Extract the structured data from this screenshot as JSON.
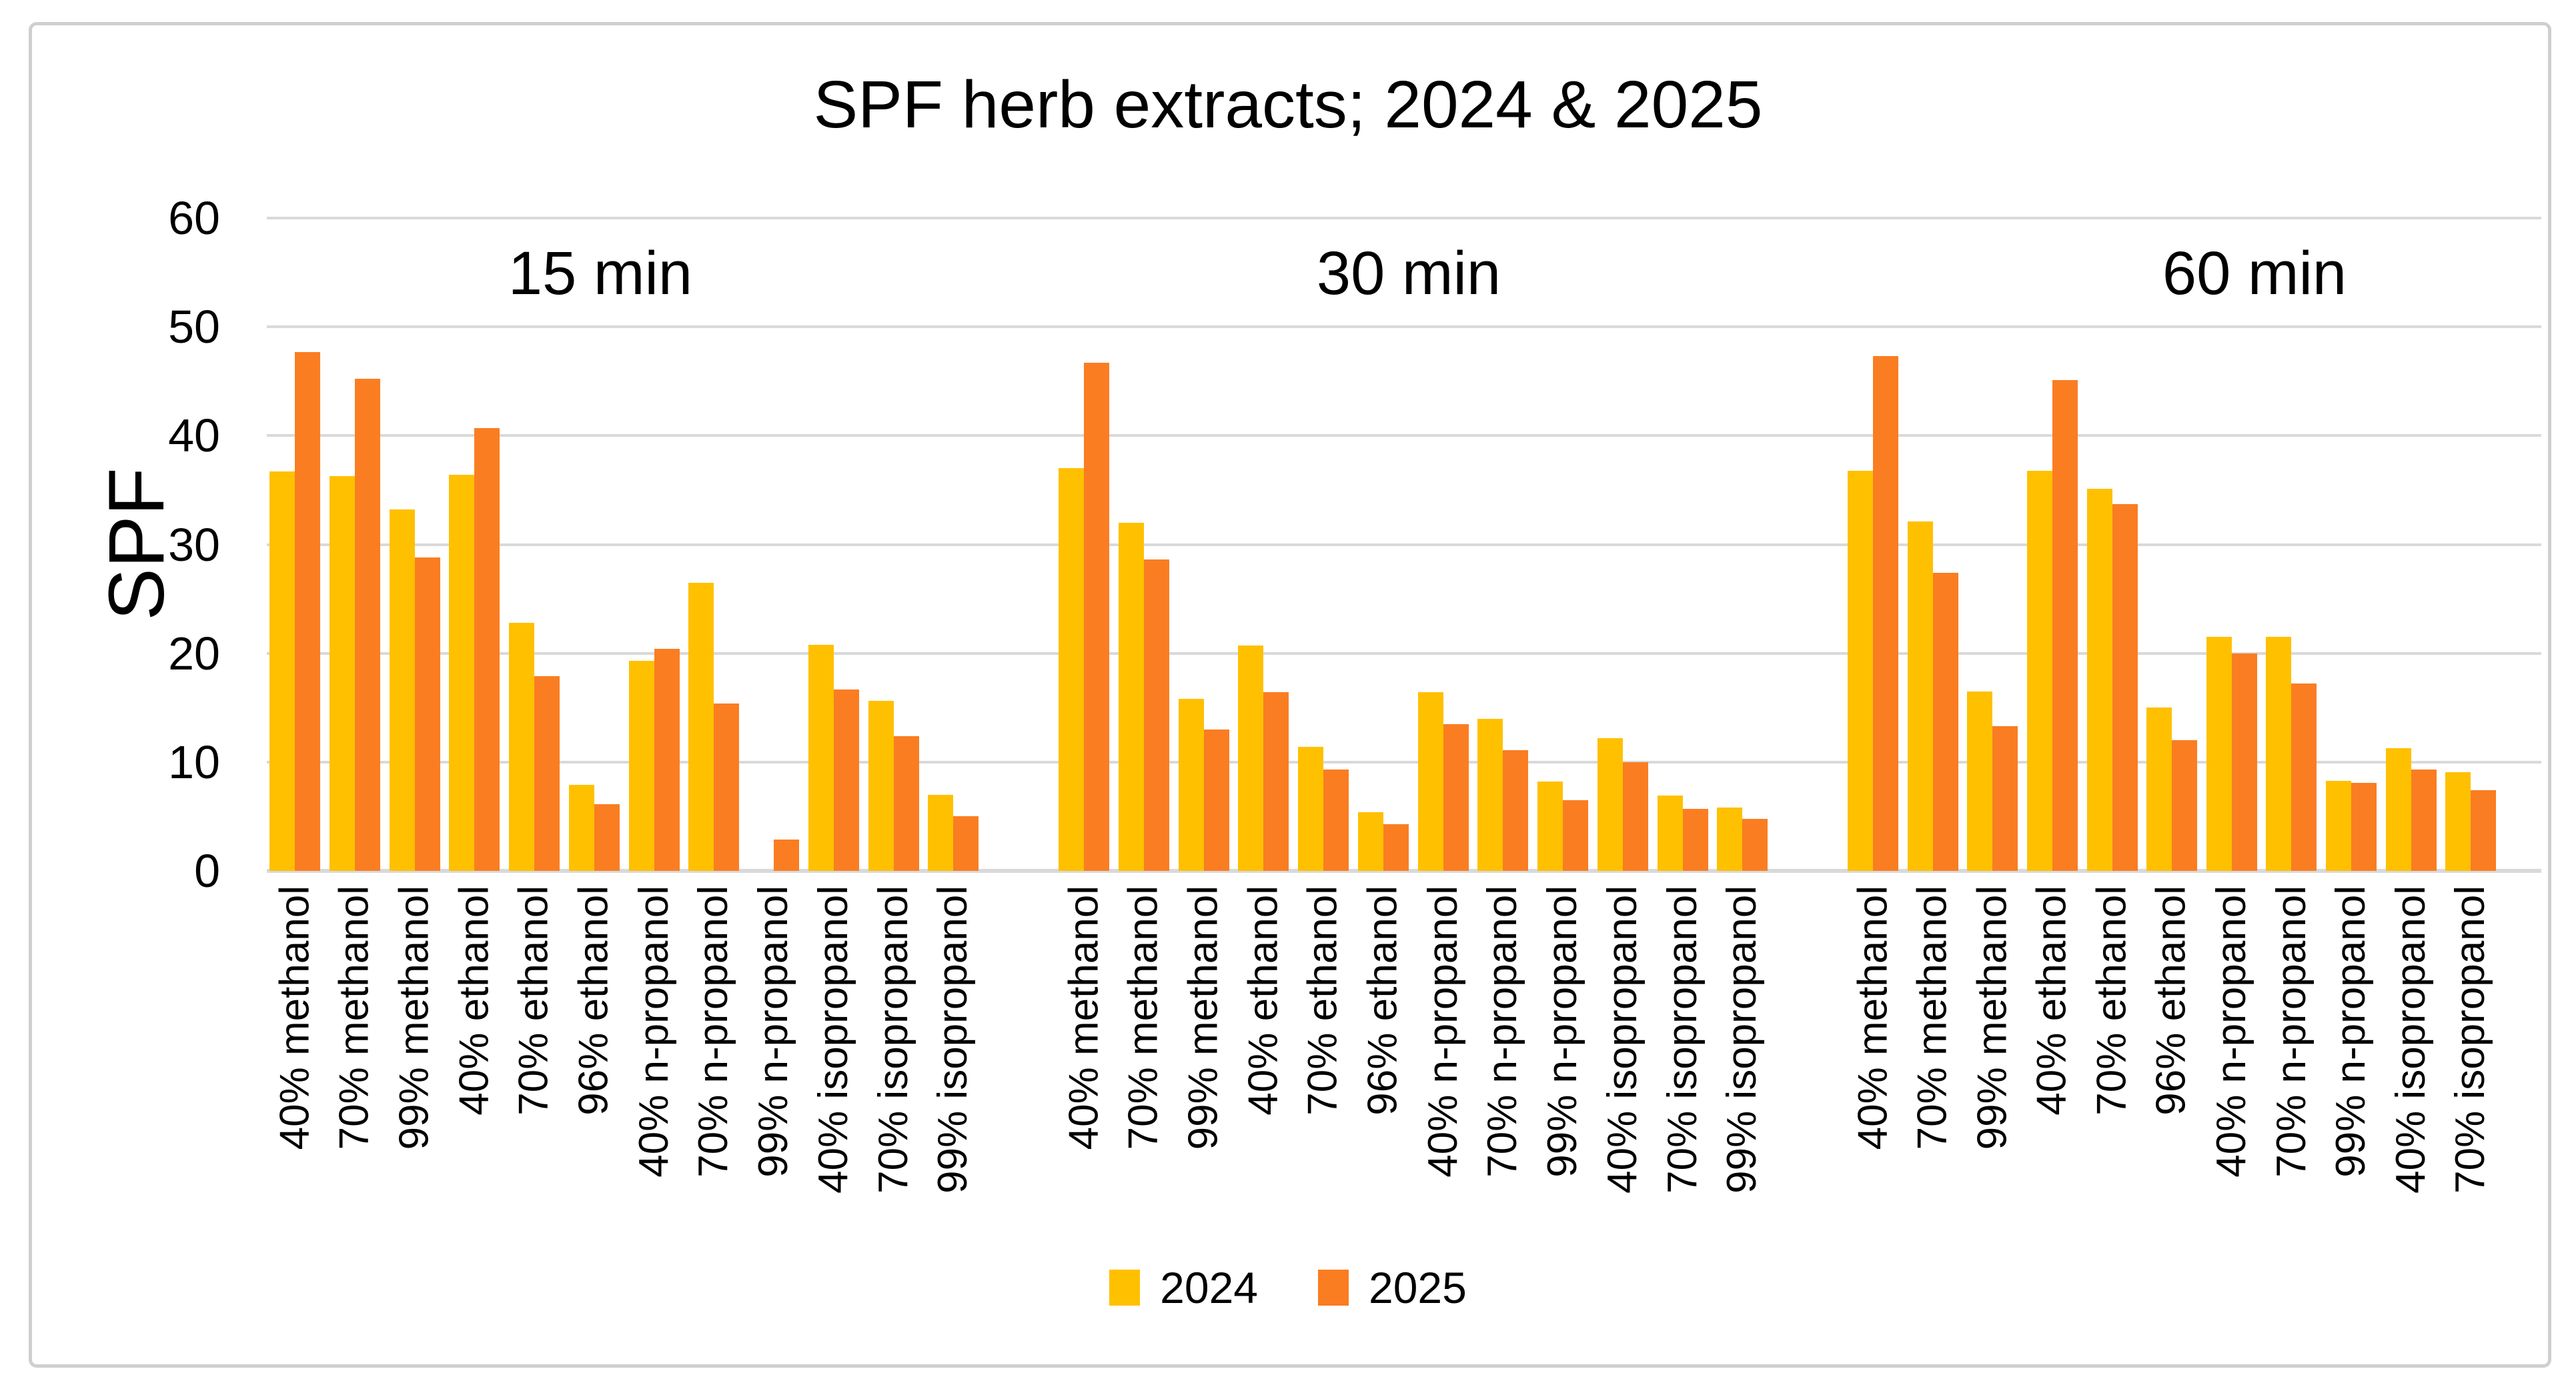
{
  "title": "SPF herb extracts; 2024 & 2025",
  "y_axis": {
    "label": "SPF",
    "ticks": [
      0,
      10,
      20,
      30,
      40,
      50,
      60
    ],
    "min": 0,
    "max": 60
  },
  "legend": {
    "items": [
      {
        "label": "2024",
        "color": "#FFC000"
      },
      {
        "label": "2025",
        "color": "#FA7D22"
      }
    ],
    "position": "bottom"
  },
  "colors": {
    "series_2024": "#FFC000",
    "series_2025": "#FA7D22",
    "gridline": "#D9D9D9",
    "frame_border": "#D0CECE",
    "text": "#000000"
  },
  "chart_data": {
    "type": "bar",
    "title": "SPF herb extracts; 2024 & 2025",
    "xlabel": "",
    "ylabel": "SPF",
    "ylim": [
      0,
      60
    ],
    "grid": true,
    "legend_position": "bottom",
    "group_labels": [
      "15 min",
      "30 min",
      "60 min"
    ],
    "groups": [
      {
        "label": "15 min",
        "categories": [
          "40% methanol",
          "70% methanol",
          "99% methanol",
          "40% ethanol",
          "70% ethanol",
          "96% ethanol",
          "40% n-propanol",
          "70% n-propanol",
          "99% n-propanol",
          "40% isopropanol",
          "70% isopropanol",
          "99% isopropanol"
        ],
        "series": [
          {
            "name": "2024",
            "values": [
              36.7,
              36.3,
              33.2,
              36.4,
              22.8,
              7.9,
              19.3,
              26.5,
              0,
              20.8,
              15.6,
              7.0
            ]
          },
          {
            "name": "2025",
            "values": [
              47.7,
              45.2,
              28.8,
              40.7,
              17.9,
              6.1,
              20.4,
              15.4,
              2.9,
              16.7,
              12.4,
              5.0
            ]
          }
        ]
      },
      {
        "label": "30 min",
        "categories": [
          "40% methanol",
          "70% methanol",
          "99% methanol",
          "40% ethanol",
          "70% ethanol",
          "96% ethanol",
          "40% n-propanol",
          "70% n-propanol",
          "99% n-propanol",
          "40% isopropanol",
          "70% isopropanol",
          "99% isopropanol"
        ],
        "series": [
          {
            "name": "2024",
            "values": [
              37.0,
              32.0,
              15.8,
              20.7,
              11.4,
              5.4,
              16.4,
              14.0,
              8.2,
              12.2,
              6.9,
              5.8
            ]
          },
          {
            "name": "2025",
            "values": [
              46.7,
              28.6,
              13.0,
              16.4,
              9.3,
              4.3,
              13.5,
              11.1,
              6.5,
              10.0,
              5.7,
              4.8
            ]
          }
        ]
      },
      {
        "label": "60 min",
        "categories": [
          "40% methanol",
          "70% methanol",
          "99% methanol",
          "40% ethanol",
          "70% ethanol",
          "96% ethanol",
          "40% n-propanol",
          "70% n-propanol",
          "99% n-propanol",
          "40% isopropanol",
          "70% isopropanol"
        ],
        "series": [
          {
            "name": "2024",
            "values": [
              36.8,
              32.1,
              16.5,
              36.8,
              35.1,
              15.0,
              21.5,
              21.5,
              8.3,
              11.3,
              9.1
            ]
          },
          {
            "name": "2025",
            "values": [
              47.3,
              27.4,
              13.3,
              45.1,
              33.7,
              12.0,
              20.0,
              17.2,
              8.1,
              9.3,
              7.4
            ]
          }
        ]
      }
    ]
  }
}
